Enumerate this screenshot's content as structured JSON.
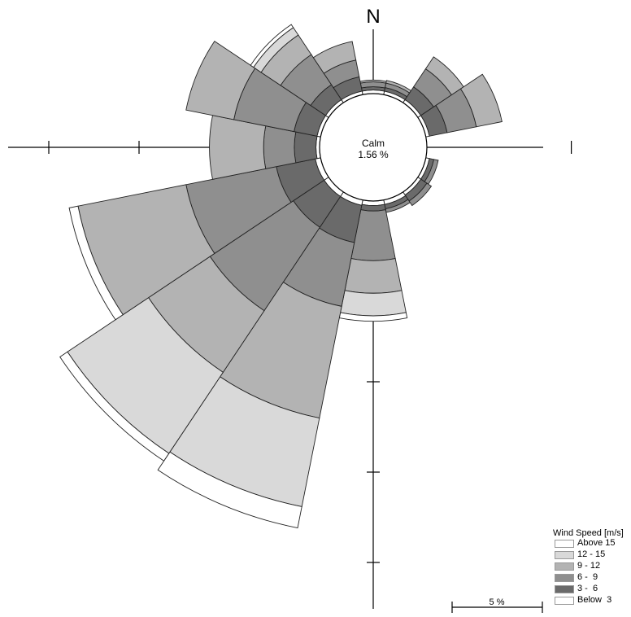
{
  "north_label": "N",
  "calm": {
    "label": "Calm",
    "value": "1.56 %"
  },
  "legend": {
    "title": "Wind Speed [m/s]",
    "items": [
      {
        "label": "Above 15",
        "color": "#ffffff"
      },
      {
        "label": "12 - 15",
        "color": "#d9d9d9"
      },
      {
        "label": "9 - 12",
        "color": "#b3b3b3"
      },
      {
        "label": "6 -  9",
        "color": "#8f8f8f"
      },
      {
        "label": "3 -  6",
        "color": "#6a6a6a"
      },
      {
        "label": "Below  3",
        "color": "#ffffff"
      }
    ]
  },
  "scale_bar": {
    "label": "5 %",
    "value_percent": 5
  },
  "chart_data": {
    "type": "wind-rose",
    "units": "percent frequency",
    "calm_percent": 1.56,
    "sectors_count": 16,
    "bins": [
      "Below  3",
      "3 -  6",
      "6 -  9",
      "9 - 12",
      "12 - 15",
      "Above 15"
    ],
    "directions": [
      "N",
      "NNE",
      "NE",
      "ENE",
      "E",
      "ESE",
      "SE",
      "SSE",
      "S",
      "SSW",
      "SW",
      "WSW",
      "W",
      "WNW",
      "NW",
      "NNW"
    ],
    "directions_deg": [
      0,
      22.5,
      45,
      67.5,
      90,
      112.5,
      135,
      157.5,
      180,
      202.5,
      225,
      247.5,
      270,
      292.5,
      315,
      337.5
    ],
    "cumulative_percent": [
      [
        0.2,
        0.38,
        0.65,
        0.75,
        0.75,
        0.75
      ],
      [
        0.2,
        0.4,
        0.65,
        0.8,
        0.8,
        0.8
      ],
      [
        0.2,
        1.05,
        2.25,
        3.05,
        3.05,
        3.05
      ],
      [
        0.2,
        1.2,
        2.85,
        4.3,
        4.3,
        4.3
      ],
      [
        0.0,
        0.0,
        0.0,
        0.0,
        0.0,
        0.0
      ],
      [
        0.2,
        0.45,
        0.7,
        0.7,
        0.7,
        0.7
      ],
      [
        0.2,
        0.6,
        0.9,
        0.9,
        0.9,
        0.9
      ],
      [
        0.25,
        0.5,
        0.7,
        0.7,
        0.7,
        0.7
      ],
      [
        0.25,
        0.55,
        3.3,
        5.1,
        6.35,
        6.65
      ],
      [
        0.3,
        2.4,
        6.0,
        12.3,
        17.3,
        18.5
      ],
      [
        0.3,
        2.35,
        7.9,
        12.0,
        17.4,
        17.9
      ],
      [
        0.3,
        2.5,
        7.6,
        13.7,
        13.7,
        14.2
      ],
      [
        0.2,
        1.4,
        3.1,
        6.1,
        6.1,
        6.1
      ],
      [
        0.2,
        1.5,
        4.9,
        7.6,
        7.6,
        7.6
      ],
      [
        0.2,
        1.2,
        3.2,
        4.5,
        5.0,
        5.2
      ],
      [
        0.2,
        1.0,
        1.95,
        3.0,
        3.0,
        3.0
      ]
    ],
    "axis_tick_step_percent": 5,
    "axis_tick_count": 3
  }
}
